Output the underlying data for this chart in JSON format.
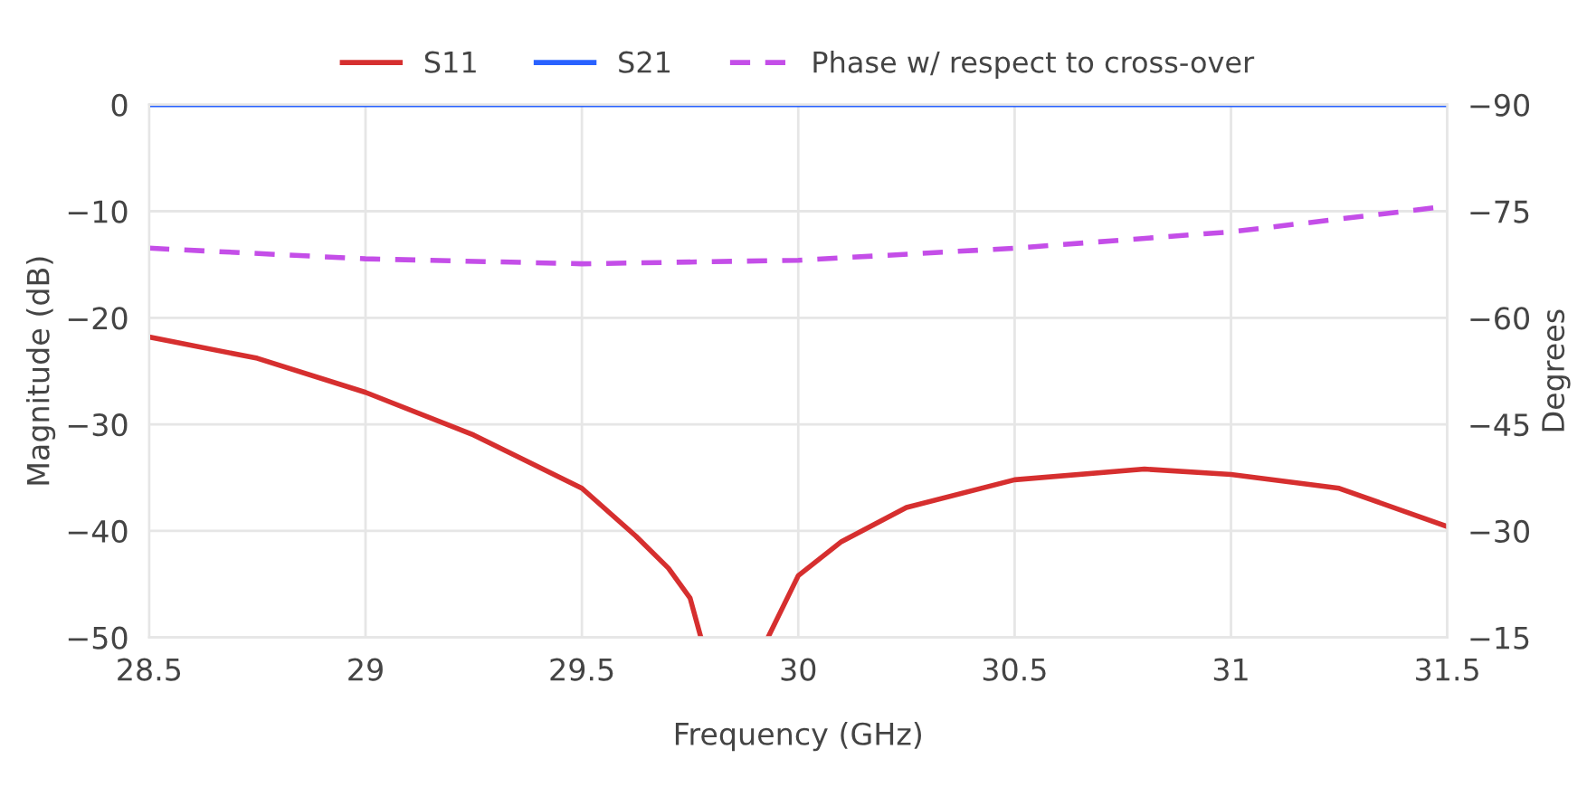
{
  "chart_data": {
    "type": "line",
    "xlabel": "Frequency (GHz)",
    "ylabel": "Magnitude (dB)",
    "y2label": "Degrees",
    "xlim": [
      28.5,
      31.5
    ],
    "xticks": [
      28.5,
      29,
      29.5,
      30,
      30.5,
      31,
      31.5
    ],
    "ylim": [
      -50,
      0
    ],
    "yticks": [
      {
        "value": -50,
        "label": "−50"
      },
      {
        "value": -40,
        "label": "−40"
      },
      {
        "value": -30,
        "label": "−30"
      },
      {
        "value": -20,
        "label": "−20"
      },
      {
        "value": -10,
        "label": "−10"
      },
      0
    ],
    "y2lim": [
      -15,
      -90
    ],
    "y2ticks": [
      {
        "value": -90,
        "label": "−90"
      },
      {
        "value": -75,
        "label": "−75"
      },
      {
        "value": -60,
        "label": "−60"
      },
      {
        "value": -45,
        "label": "−45"
      },
      {
        "value": -30,
        "label": "−30"
      },
      {
        "value": -15,
        "label": "−15"
      }
    ],
    "grid": true,
    "legend": "top",
    "marker": "none",
    "series": [
      {
        "name": "S11",
        "color": "#d62f2f",
        "x": [
          28.5,
          28.75,
          29,
          29.25,
          29.5,
          29.625,
          29.7,
          29.75,
          29.775,
          29.85,
          29.93,
          30,
          30.1,
          30.25,
          30.5,
          30.8,
          31,
          31.25,
          31.5
        ],
        "values": [
          -21.8,
          -23.8,
          -27,
          -31,
          -36,
          -40.5,
          -43.5,
          -46.3,
          -50,
          null,
          -50,
          -44.2,
          -41,
          -37.8,
          -35.2,
          -34.2,
          -34.7,
          -36,
          -39.6
        ]
      },
      {
        "name": "S21",
        "color": "#2962ff",
        "x": [
          28.5,
          31.5
        ],
        "values": [
          0,
          0
        ]
      },
      {
        "name": "Phase w/ respect to cross-over",
        "color": "#c44ee8",
        "axis": "y2",
        "line_style": "dashed",
        "x": [
          28.5,
          29,
          29.5,
          30,
          30.5,
          31,
          31.5
        ],
        "values": [
          -69.8,
          -68.3,
          -67.6,
          -68.1,
          -69.8,
          -72.1,
          -75.7
        ]
      }
    ]
  }
}
